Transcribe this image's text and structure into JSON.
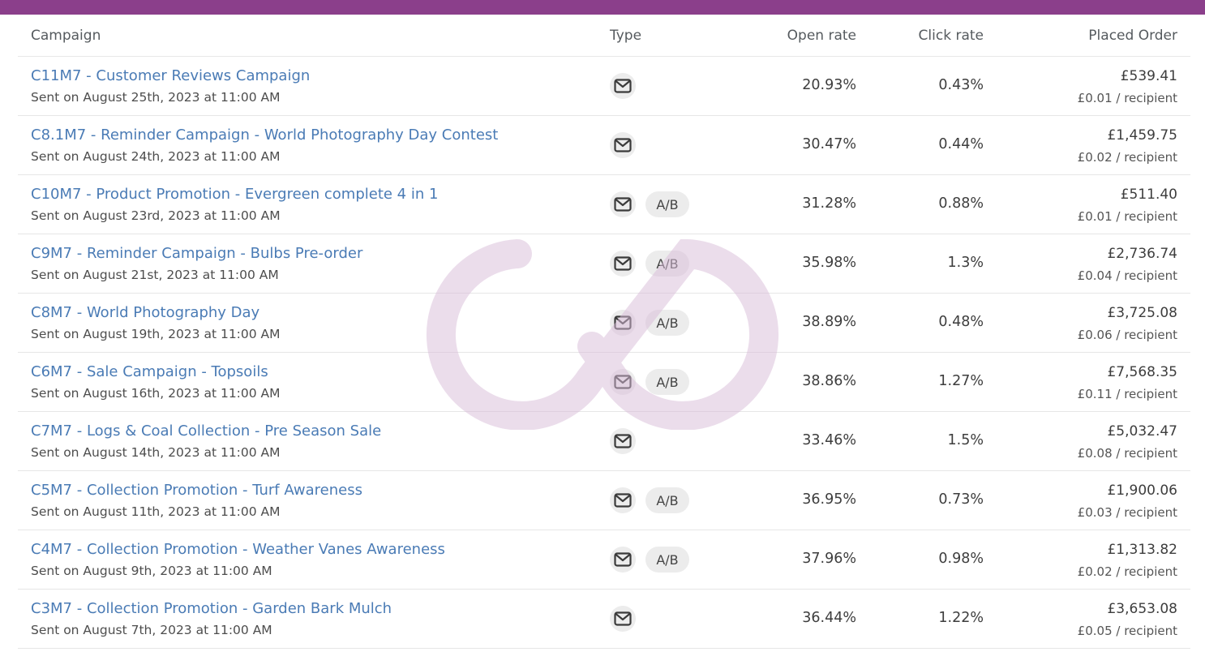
{
  "header": {
    "campaign": "Campaign",
    "type": "Type",
    "open_rate": "Open rate",
    "click_rate": "Click rate",
    "placed_order": "Placed Order"
  },
  "colors": {
    "top_bar": "#8b3f8b",
    "link": "#4a7bb5",
    "watermark": "#c9a3c9"
  },
  "type_icon_name": "email-icon",
  "watermark_name": "infinity-logo-watermark",
  "rows": [
    {
      "name": "C11M7 - Customer Reviews Campaign",
      "sent": "Sent on August 25th, 2023 at 11:00 AM",
      "ab": "",
      "open_rate": "20.93%",
      "click_rate": "0.43%",
      "placed": "£539.41",
      "per_recipient": "£0.01 / recipient"
    },
    {
      "name": "C8.1M7 - Reminder Campaign - World Photography Day Contest",
      "sent": "Sent on August 24th, 2023 at 11:00 AM",
      "ab": "",
      "open_rate": "30.47%",
      "click_rate": "0.44%",
      "placed": "£1,459.75",
      "per_recipient": "£0.02 / recipient"
    },
    {
      "name": "C10M7 - Product Promotion - Evergreen complete 4 in 1",
      "sent": "Sent on August 23rd, 2023 at 11:00 AM",
      "ab": "A/B",
      "open_rate": "31.28%",
      "click_rate": "0.88%",
      "placed": "£511.40",
      "per_recipient": "£0.01 / recipient"
    },
    {
      "name": "C9M7 - Reminder Campaign - Bulbs Pre-order",
      "sent": "Sent on August 21st, 2023 at 11:00 AM",
      "ab": "A/B",
      "open_rate": "35.98%",
      "click_rate": "1.3%",
      "placed": "£2,736.74",
      "per_recipient": "£0.04 / recipient"
    },
    {
      "name": "C8M7 - World Photography Day",
      "sent": "Sent on August 19th, 2023 at 11:00 AM",
      "ab": "A/B",
      "open_rate": "38.89%",
      "click_rate": "0.48%",
      "placed": "£3,725.08",
      "per_recipient": "£0.06 / recipient"
    },
    {
      "name": "C6M7 - Sale Campaign - Topsoils",
      "sent": "Sent on August 16th, 2023 at 11:00 AM",
      "ab": "A/B",
      "open_rate": "38.86%",
      "click_rate": "1.27%",
      "placed": "£7,568.35",
      "per_recipient": "£0.11 / recipient"
    },
    {
      "name": "C7M7 - Logs & Coal Collection - Pre Season Sale",
      "sent": "Sent on August 14th, 2023 at 11:00 AM",
      "ab": "",
      "open_rate": "33.46%",
      "click_rate": "1.5%",
      "placed": "£5,032.47",
      "per_recipient": "£0.08 / recipient"
    },
    {
      "name": "C5M7 - Collection Promotion - Turf Awareness",
      "sent": "Sent on August 11th, 2023 at 11:00 AM",
      "ab": "A/B",
      "open_rate": "36.95%",
      "click_rate": "0.73%",
      "placed": "£1,900.06",
      "per_recipient": "£0.03 / recipient"
    },
    {
      "name": "C4M7 - Collection Promotion - Weather Vanes Awareness",
      "sent": "Sent on August 9th, 2023 at 11:00 AM",
      "ab": "A/B",
      "open_rate": "37.96%",
      "click_rate": "0.98%",
      "placed": "£1,313.82",
      "per_recipient": "£0.02 / recipient"
    },
    {
      "name": "C3M7 - Collection Promotion - Garden Bark Mulch",
      "sent": "Sent on August 7th, 2023 at 11:00 AM",
      "ab": "",
      "open_rate": "36.44%",
      "click_rate": "1.22%",
      "placed": "£3,653.08",
      "per_recipient": "£0.05 / recipient"
    }
  ]
}
